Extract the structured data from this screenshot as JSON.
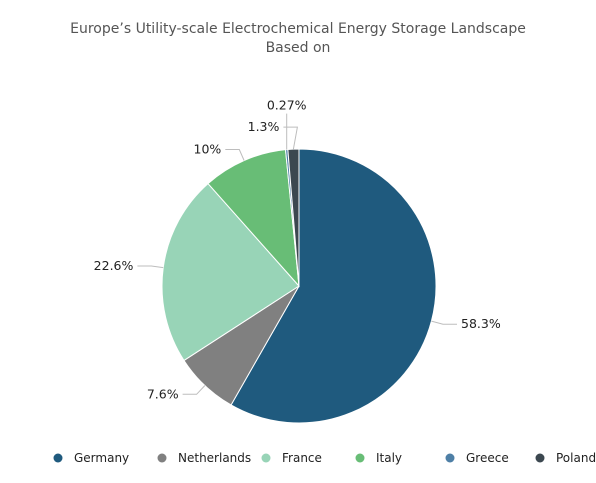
{
  "chart_data": {
    "type": "pie",
    "title": "Europe’s Utility-scale Electrochemical Energy Storage Landscape",
    "subtitle": "Based on",
    "categories": [
      "Germany",
      "Netherlands",
      "France",
      "Italy",
      "Greece",
      "Poland"
    ],
    "values": [
      58.3,
      7.6,
      22.6,
      10,
      0.27,
      1.3
    ],
    "labels": [
      "58.3%",
      "7.6%",
      "22.6%",
      "10%",
      "0.27%",
      "1.3%"
    ],
    "colors": [
      "#1f5a7e",
      "#808080",
      "#98d4b7",
      "#68bd76",
      "#4e7fa6",
      "#3c4850"
    ],
    "start_angle_deg": 0,
    "direction": "clockwise",
    "legend_position": "bottom"
  }
}
